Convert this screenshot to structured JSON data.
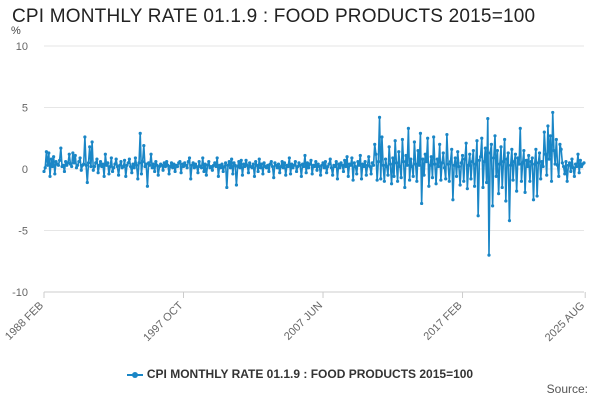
{
  "header": {
    "title": "CPI MONTHLY RATE 01.1.9 : FOOD PRODUCTS 2015=100",
    "unit": "%"
  },
  "footer": {
    "source": "Source:"
  },
  "colors": {
    "series": "#1a86c6",
    "grid": "#e6e6e6",
    "axis": "#cccccc",
    "tick_label": "#666666"
  },
  "chart_data": {
    "type": "line",
    "title": "CPI MONTHLY RATE 01.1.9 : FOOD PRODUCTS 2015=100",
    "xlabel": "",
    "ylabel": "%",
    "ylim": [
      -10,
      10
    ],
    "y_ticks": [
      10,
      5,
      0,
      -5,
      -10
    ],
    "x_ticks": [
      {
        "label": "1988 FEB",
        "index": 0
      },
      {
        "label": "1997 OCT",
        "index": 116
      },
      {
        "label": "2007 JUN",
        "index": 232
      },
      {
        "label": "2017 FEB",
        "index": 348
      },
      {
        "label": "2025 AUG",
        "index": 450
      }
    ],
    "x_start": "1988-02",
    "x_end": "2025-08",
    "grid": true,
    "legend_position": "bottom",
    "series": [
      {
        "name": "CPI MONTHLY RATE 01.1.9 : FOOD PRODUCTS 2015=100",
        "values": [
          -0.2,
          0.1,
          1.4,
          0.3,
          1.3,
          -0.6,
          0.8,
          0.2,
          1.0,
          -0.4,
          0.6,
          0.4,
          0.3,
          0.7,
          1.7,
          0.2,
          0.3,
          -0.2,
          0.6,
          0.3,
          0.5,
          1.2,
          0.4,
          0.2,
          1.3,
          0.5,
          1.1,
          0.1,
          0.3,
          0.6,
          0.9,
          -0.1,
          0.3,
          0.4,
          2.6,
          0.3,
          -1.1,
          0.5,
          1.8,
          0.2,
          2.2,
          -0.1,
          0.2,
          0.5,
          0.8,
          -0.3,
          0.3,
          0.6,
          0.2,
          0.4,
          -0.6,
          1.2,
          0.3,
          0.5,
          -0.4,
          0.2,
          0.9,
          -0.2,
          0.1,
          0.4,
          0.8,
          0.2,
          -0.5,
          0.3,
          0.6,
          0.1,
          0.2,
          0.7,
          -0.6,
          0.3,
          0.5,
          0.8,
          0.2,
          -0.3,
          0.4,
          0.1,
          0.9,
          0.3,
          -0.8,
          0.5,
          2.9,
          -0.4,
          0.6,
          1.9,
          0.2,
          0.4,
          -1.4,
          0.5,
          0.3,
          1.2,
          0.1,
          0.4,
          -0.2,
          0.6,
          0.3,
          -0.5,
          0.2,
          0.4,
          0.3,
          -0.1,
          0.5,
          0.2,
          0.6,
          0.3,
          -0.4,
          0.2,
          0.5,
          0.1,
          0.4,
          -0.2,
          0.3,
          0.2,
          0.5,
          0.6,
          -0.3,
          0.4,
          0.2,
          0.5,
          0.3,
          0.1,
          0.6,
          0.9,
          -0.8,
          0.3,
          0.5,
          0.1,
          0.4,
          0.2,
          -0.3,
          0.6,
          0.2,
          0.1,
          0.9,
          -0.2,
          0.4,
          -0.5,
          0.3,
          0.6,
          0.1,
          0.2,
          -0.1,
          0.3,
          0.5,
          0.2,
          0.9,
          -0.6,
          0.3,
          0.1,
          0.4,
          -0.2,
          0.2,
          0.5,
          -1.5,
          0.3,
          0.6,
          0.1,
          0.8,
          -0.4,
          0.5,
          0.3,
          -1.3,
          0.2,
          0.6,
          0.1,
          0.7,
          -0.5,
          0.4,
          0.2,
          0.7,
          0.3,
          -0.3,
          0.5,
          0.2,
          0.1,
          0.4,
          -0.6,
          0.6,
          0.3,
          -0.2,
          0.8,
          0.1,
          0.4,
          -0.4,
          0.5,
          0.2,
          0.1,
          0.3,
          -0.2,
          0.4,
          0.6,
          0.2,
          -0.7,
          0.5,
          0.3,
          0.1,
          0.4,
          -0.3,
          0.2,
          0.6,
          0.1,
          0.5,
          -0.5,
          0.3,
          0.2,
          0.9,
          -0.4,
          0.4,
          0.1,
          0.3,
          0.6,
          -0.2,
          0.2,
          0.5,
          0.3,
          -0.6,
          0.4,
          0.2,
          1.1,
          -0.3,
          0.5,
          0.1,
          0.4,
          0.7,
          -0.4,
          0.3,
          0.2,
          0.6,
          -0.1,
          0.4,
          0.2,
          -0.5,
          0.3,
          0.5,
          0.1,
          0.6,
          -0.3,
          0.2,
          0.4,
          0.8,
          0.1,
          -0.5,
          0.3,
          0.2,
          0.6,
          -0.8,
          0.4,
          0.1,
          0.5,
          0.3,
          -0.2,
          0.7,
          0.2,
          1.0,
          -0.6,
          0.4,
          0.3,
          0.9,
          -0.9,
          0.5,
          0.2,
          -0.4,
          0.6,
          0.3,
          1.1,
          -0.8,
          0.4,
          0.2,
          0.6,
          -0.5,
          0.3,
          1.0,
          0.2,
          -0.4,
          0.5,
          0.3,
          2.0,
          1.2,
          -0.9,
          0.6,
          4.2,
          -0.8,
          2.6,
          0.3,
          -1.0,
          0.8,
          0.2,
          -0.5,
          1.8,
          0.4,
          -1.2,
          0.9,
          -0.6,
          2.3,
          0.5,
          -1.0,
          1.4,
          0.2,
          -0.7,
          2.4,
          0.6,
          -1.5,
          1.1,
          0.3,
          3.3,
          -0.9,
          0.8,
          0.2,
          -0.6,
          2.2,
          0.4,
          -1.0,
          1.5,
          0.3,
          2.9,
          -2.8,
          0.8,
          -0.5,
          1.2,
          0.6,
          2.5,
          -1.4,
          0.3,
          1.0,
          -0.7,
          2.6,
          0.4,
          -1.2,
          0.8,
          0.2,
          2.0,
          -0.9,
          0.5,
          1.3,
          0.1,
          -0.8,
          2.8,
          0.4,
          -1.0,
          0.6,
          1.6,
          -2.5,
          0.3,
          0.9,
          -0.6,
          1.4,
          0.2,
          -1.3,
          0.5,
          1.1,
          -1.0,
          0.8,
          2.1,
          -1.6,
          0.3,
          1.2,
          -0.8,
          0.6,
          1.5,
          -1.4,
          0.4,
          2.3,
          -3.8,
          0.7,
          1.0,
          2.5,
          -1.5,
          0.6,
          1.7,
          -1.1,
          4.1,
          -7.0,
          1.3,
          2.0,
          -3.0,
          0.9,
          2.7,
          -0.6,
          1.5,
          -2.0,
          0.4,
          1.8,
          -1.5,
          0.6,
          2.4,
          -2.6,
          0.8,
          1.3,
          -4.2,
          0.3,
          1.6,
          -0.9,
          0.6,
          1.2,
          -1.8,
          0.9,
          0.4,
          3.3,
          -1.0,
          0.5,
          1.5,
          -1.9,
          0.7,
          0.2,
          1.1,
          -1.0,
          0.6,
          0.9,
          -2.5,
          0.4,
          1.6,
          -2.2,
          0.5,
          1.3,
          -0.8,
          0.6,
          0.2,
          3.0,
          1.2,
          -0.5,
          3.5,
          0.8,
          2.7,
          -1.0,
          4.6,
          1.5,
          0.4,
          2.4,
          0.3,
          -0.6,
          2.0,
          1.6,
          0.5,
          0.2,
          -0.4,
          0.6,
          -1.0,
          0.3,
          0.5,
          -0.2,
          0.8,
          0.1,
          -0.6,
          0.4,
          0.2,
          1.2,
          -0.3,
          0.7,
          0.2,
          0.4,
          0.5
        ]
      }
    ]
  }
}
